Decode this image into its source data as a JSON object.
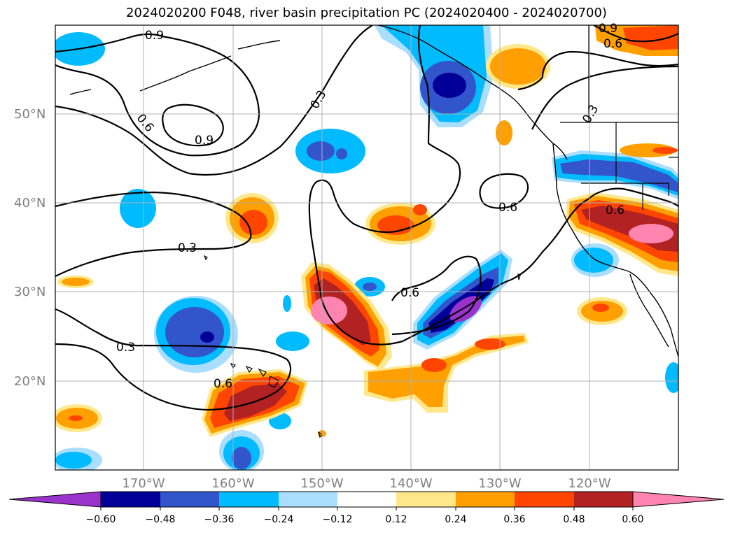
{
  "title": "2024020200 F048, river basin precipitation PC (2024020400 - 2024020700)",
  "map": {
    "lat_ticks": [
      "50°N",
      "40°N",
      "30°N",
      "20°N"
    ],
    "lon_ticks": [
      "170°W",
      "160°W",
      "150°W",
      "140°W",
      "130°W",
      "120°W"
    ],
    "contour_labels": [
      "0.9",
      "0.9",
      "0.6",
      "0.9",
      "0.3",
      "0.3",
      "0.3",
      "0.3",
      "0.6",
      "0.6",
      "0.6",
      "0.6",
      "0.6",
      "0.6"
    ]
  },
  "colorbar": {
    "ticks": [
      "−0.60",
      "−0.48",
      "−0.36",
      "−0.24",
      "−0.12",
      "0.12",
      "0.24",
      "0.36",
      "0.48",
      "0.60"
    ],
    "colors": [
      "#9933cc",
      "#000099",
      "#3355cc",
      "#00bbff",
      "#aadeff",
      "#ffffff",
      "#ffe78a",
      "#ffa000",
      "#ff4500",
      "#b22222",
      "#ff85b0"
    ]
  }
}
